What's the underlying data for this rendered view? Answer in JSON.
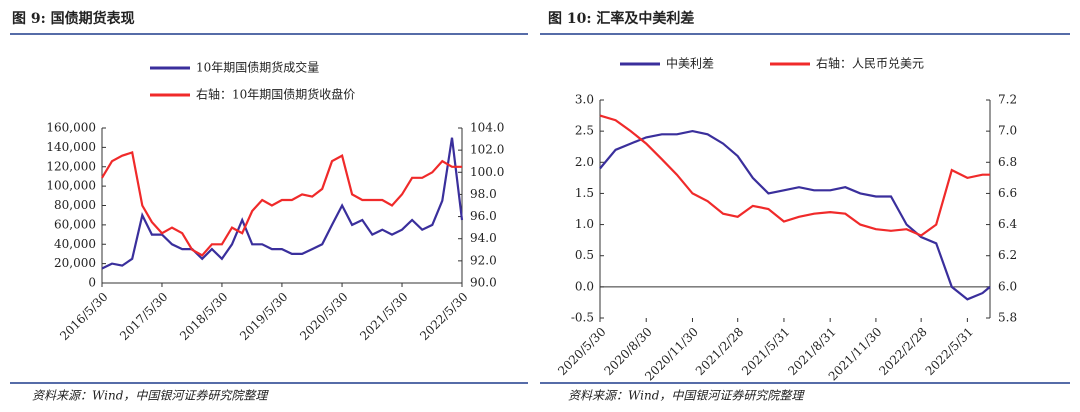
{
  "chart_data": [
    {
      "type": "line",
      "title": "图 9: 国债期货表现",
      "source": "资料来源：Wind，中国银河证券研究院整理",
      "x": [
        "2016/5/30",
        "2016/7/30",
        "2016/9/30",
        "2016/11/30",
        "2017/1/30",
        "2017/3/30",
        "2017/5/30",
        "2017/7/30",
        "2017/9/30",
        "2017/11/30",
        "2018/1/30",
        "2018/3/30",
        "2018/5/30",
        "2018/7/30",
        "2018/9/30",
        "2018/11/30",
        "2019/1/30",
        "2019/3/30",
        "2019/5/30",
        "2019/7/30",
        "2019/9/30",
        "2019/11/30",
        "2020/1/30",
        "2020/3/30",
        "2020/5/30",
        "2020/7/30",
        "2020/9/30",
        "2020/11/30",
        "2021/1/30",
        "2021/3/30",
        "2021/5/30",
        "2021/7/30",
        "2021/9/30",
        "2021/11/30",
        "2022/1/30",
        "2022/3/30",
        "2022/5/30"
      ],
      "xlim": [
        "2016/5/30",
        "2022/5/30"
      ],
      "xticks": [
        "2016/5/30",
        "2017/5/30",
        "2018/5/30",
        "2019/5/30",
        "2020/5/30",
        "2021/5/30",
        "2022/5/30"
      ],
      "ylim": [
        0,
        160000
      ],
      "yticks": [
        0,
        {
          "value": 20000,
          "label": "20,000"
        },
        {
          "value": 40000,
          "label": "40,000"
        },
        {
          "value": 60000,
          "label": "60,000"
        },
        {
          "value": 80000,
          "label": "80,000"
        },
        {
          "value": 100000,
          "label": "100,000"
        },
        {
          "value": 120000,
          "label": "120,000"
        },
        {
          "value": 140000,
          "label": "140,000"
        },
        {
          "value": 160000,
          "label": "160,000"
        }
      ],
      "y2lim": [
        90,
        104
      ],
      "y2ticks": [
        {
          "value": 90,
          "label": "90.0"
        },
        {
          "value": 92,
          "label": "92.0"
        },
        {
          "value": 94,
          "label": "94.0"
        },
        {
          "value": 96,
          "label": "96.0"
        },
        {
          "value": 98,
          "label": "98.0"
        },
        {
          "value": 100,
          "label": "100.0"
        },
        {
          "value": 102,
          "label": "102.0"
        },
        {
          "value": 104,
          "label": "104.0"
        }
      ],
      "legend": "top",
      "series": [
        {
          "name": "10年期国债期货成交量",
          "color": "#3a2f9c",
          "values": [
            15000,
            20000,
            18000,
            25000,
            70000,
            50000,
            50000,
            40000,
            35000,
            35000,
            25000,
            35000,
            25000,
            40000,
            65000,
            40000,
            40000,
            35000,
            35000,
            30000,
            30000,
            35000,
            40000,
            60000,
            80000,
            60000,
            65000,
            50000,
            55000,
            50000,
            55000,
            65000,
            55000,
            60000,
            85000,
            150000,
            65000
          ]
        },
        {
          "name": "右轴：10年期国债期货收盘价",
          "color": "#f02a2a",
          "axis": "y2",
          "values": [
            99.5,
            101,
            101.5,
            101.8,
            97,
            95.5,
            94.5,
            95,
            94.5,
            93,
            92.5,
            93.5,
            93.5,
            95,
            94.5,
            96.5,
            97.5,
            97,
            97.5,
            97.5,
            98,
            97.8,
            98.5,
            101,
            101.5,
            98,
            97.5,
            97.5,
            97.5,
            97,
            98,
            99.5,
            99.5,
            100,
            101,
            100.5,
            100.5
          ]
        }
      ]
    },
    {
      "type": "line",
      "title": "图 10: 汇率及中美利差",
      "source": "资料来源：Wind，中国银河证券研究院整理",
      "x": [
        "2020/5/30",
        "2020/6/30",
        "2020/7/30",
        "2020/8/30",
        "2020/9/30",
        "2020/10/30",
        "2020/11/30",
        "2020/12/30",
        "2021/1/30",
        "2021/2/28",
        "2021/3/30",
        "2021/4/30",
        "2021/5/31",
        "2021/6/30",
        "2021/7/30",
        "2021/8/31",
        "2021/9/30",
        "2021/10/30",
        "2021/11/30",
        "2021/12/30",
        "2022/1/30",
        "2022/2/28",
        "2022/3/30",
        "2022/4/30",
        "2022/5/31",
        "2022/6/30",
        "2022/7/15"
      ],
      "xlim": [
        "2020/5/30",
        "2022/7/15"
      ],
      "xticks": [
        "2020/5/30",
        "2020/8/30",
        "2020/11/30",
        "2021/2/28",
        "2021/5/31",
        "2021/8/31",
        "2021/11/30",
        "2022/2/28",
        "2022/5/31"
      ],
      "ylim": [
        -0.5,
        3
      ],
      "yticks": [
        -0.5,
        {
          "value": 0,
          "label": "0.0"
        },
        0.5,
        {
          "value": 1,
          "label": "1.0"
        },
        1.5,
        {
          "value": 2,
          "label": "2.0"
        },
        2.5,
        {
          "value": 3,
          "label": "3.0"
        }
      ],
      "y2lim": [
        5.8,
        7.2
      ],
      "y2ticks": [
        5.8,
        {
          "value": 6,
          "label": "6.0"
        },
        6.2,
        6.4,
        6.6,
        6.8,
        {
          "value": 7,
          "label": "7.0"
        },
        7.2
      ],
      "legend": "top",
      "series": [
        {
          "name": "中美利差",
          "color": "#3a2f9c",
          "values": [
            1.9,
            2.2,
            2.3,
            2.4,
            2.45,
            2.45,
            2.5,
            2.45,
            2.3,
            2.1,
            1.75,
            1.5,
            1.55,
            1.6,
            1.55,
            1.55,
            1.6,
            1.5,
            1.45,
            1.45,
            1.0,
            0.8,
            0.7,
            0.0,
            -0.2,
            -0.1,
            0.0
          ]
        },
        {
          "name": "右轴：人民币兑美元",
          "color": "#f02a2a",
          "axis": "y2",
          "values": [
            7.1,
            7.07,
            7.0,
            6.92,
            6.82,
            6.72,
            6.6,
            6.55,
            6.47,
            6.45,
            6.52,
            6.5,
            6.42,
            6.45,
            6.47,
            6.48,
            6.47,
            6.4,
            6.37,
            6.36,
            6.37,
            6.33,
            6.4,
            6.75,
            6.7,
            6.72,
            6.72
          ]
        }
      ]
    }
  ]
}
